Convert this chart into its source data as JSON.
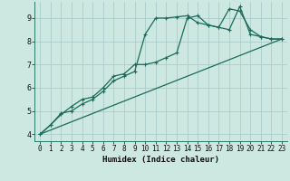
{
  "xlabel": "Humidex (Indice chaleur)",
  "bg_color": "#cce8e0",
  "grid_color": "#aacccc",
  "line_color": "#1a6b5a",
  "xlim": [
    -0.5,
    23.5
  ],
  "ylim": [
    3.7,
    9.7
  ],
  "xticks": [
    0,
    1,
    2,
    3,
    4,
    5,
    6,
    7,
    8,
    9,
    10,
    11,
    12,
    13,
    14,
    15,
    16,
    17,
    18,
    19,
    20,
    21,
    22,
    23
  ],
  "yticks": [
    4,
    5,
    6,
    7,
    8,
    9
  ],
  "line1_x": [
    0,
    1,
    2,
    3,
    4,
    5,
    6,
    7,
    8,
    9,
    10,
    11,
    12,
    13,
    14,
    15,
    16,
    17,
    18,
    19,
    20,
    21,
    22,
    23
  ],
  "line1_y": [
    4.0,
    4.4,
    4.9,
    5.0,
    5.3,
    5.5,
    5.85,
    6.3,
    6.5,
    6.7,
    8.3,
    9.0,
    9.0,
    9.05,
    9.1,
    8.8,
    8.7,
    8.6,
    9.4,
    9.3,
    8.5,
    8.2,
    8.1,
    8.1
  ],
  "line2_x": [
    0,
    1,
    2,
    3,
    4,
    5,
    6,
    7,
    8,
    9,
    10,
    11,
    12,
    13,
    14,
    15,
    16,
    17,
    18,
    19,
    20,
    21,
    22,
    23
  ],
  "line2_y": [
    4.0,
    4.4,
    4.85,
    5.2,
    5.5,
    5.6,
    6.0,
    6.5,
    6.6,
    7.0,
    7.0,
    7.1,
    7.3,
    7.5,
    9.0,
    9.1,
    8.7,
    8.6,
    8.5,
    9.5,
    8.3,
    8.2,
    8.1,
    8.1
  ],
  "line3_x": [
    0,
    23
  ],
  "line3_y": [
    4.0,
    8.1
  ],
  "marker_size": 3.5,
  "lw": 0.9
}
